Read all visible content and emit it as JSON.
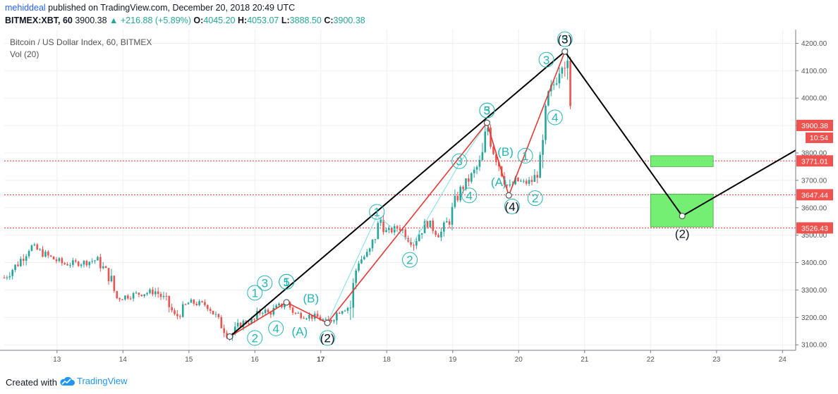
{
  "header": {
    "author": "mehiddeal",
    "published": "published on TradingView.com, December 20, 2018 20:49 UTC",
    "ticker": "BITMEX:XBT, 60",
    "last_price": "3900.38",
    "change": "▲ +216.88 (+5.89%)",
    "open_label": "O:",
    "open": "4045.20",
    "high_label": "H:",
    "high": "4053.07",
    "low_label": "L:",
    "low": "3888.50",
    "close_label": "C:",
    "close": "3900.38"
  },
  "footer": {
    "created_with": "Created with",
    "brand": "TradingView"
  },
  "colors": {
    "up": "#26a69a",
    "down": "#ef5350",
    "wave_black": "#000000",
    "wave_red": "#e53935",
    "wave_cyan": "#7ee0e6",
    "label_teal": "#26b5b5",
    "hline": "#e53935",
    "target_box": "#66ee66",
    "price_tag_red": "#ef5350"
  },
  "chart_data": {
    "type": "candlestick",
    "title": "Bitcoin / US Dollar Index, 60, BITMEX",
    "volume_label": "Vol (20)",
    "ylim": [
      3080,
      4250
    ],
    "y_ticks": [
      3100,
      3200,
      3300,
      3400,
      3500,
      3600,
      3700,
      3800,
      3900,
      4000,
      4100,
      4200
    ],
    "y_tick_labels": [
      "3100.00",
      "3200.00",
      "3300.00",
      "3400.00",
      "3500.00",
      "3600.00",
      "3700.00",
      "3800.00",
      "3900.00",
      "4000.00",
      "4100.00",
      "4200.00"
    ],
    "xlim": [
      12.2,
      24.2
    ],
    "x_ticks": [
      13,
      14,
      15,
      16,
      17,
      18,
      19,
      20,
      21,
      22,
      23,
      24
    ],
    "x_tick_labels": [
      "13",
      "14",
      "15",
      "16",
      "17",
      "18",
      "19",
      "20",
      "21",
      "22",
      "23",
      "24"
    ],
    "x_bold_ticks": [
      17
    ],
    "price_anchors": [
      {
        "x": 12.2,
        "y": 3345
      },
      {
        "x": 12.4,
        "y": 3395
      },
      {
        "x": 12.6,
        "y": 3460
      },
      {
        "x": 12.85,
        "y": 3425
      },
      {
        "x": 13.1,
        "y": 3395
      },
      {
        "x": 13.4,
        "y": 3400
      },
      {
        "x": 13.6,
        "y": 3410
      },
      {
        "x": 13.8,
        "y": 3350
      },
      {
        "x": 13.9,
        "y": 3270
      },
      {
        "x": 14.2,
        "y": 3285
      },
      {
        "x": 14.5,
        "y": 3295
      },
      {
        "x": 14.65,
        "y": 3260
      },
      {
        "x": 14.8,
        "y": 3200
      },
      {
        "x": 15.0,
        "y": 3255
      },
      {
        "x": 15.3,
        "y": 3245
      },
      {
        "x": 15.45,
        "y": 3185
      },
      {
        "x": 15.62,
        "y": 3130
      },
      {
        "x": 15.8,
        "y": 3180
      },
      {
        "x": 16.0,
        "y": 3190
      },
      {
        "x": 16.1,
        "y": 3230
      },
      {
        "x": 16.2,
        "y": 3215
      },
      {
        "x": 16.48,
        "y": 3255
      },
      {
        "x": 16.6,
        "y": 3215
      },
      {
        "x": 16.8,
        "y": 3205
      },
      {
        "x": 16.95,
        "y": 3200
      },
      {
        "x": 17.1,
        "y": 3180
      },
      {
        "x": 17.3,
        "y": 3230
      },
      {
        "x": 17.45,
        "y": 3240
      },
      {
        "x": 17.55,
        "y": 3400
      },
      {
        "x": 17.75,
        "y": 3440
      },
      {
        "x": 17.9,
        "y": 3560
      },
      {
        "x": 18.0,
        "y": 3510
      },
      {
        "x": 18.2,
        "y": 3530
      },
      {
        "x": 18.4,
        "y": 3470
      },
      {
        "x": 18.6,
        "y": 3550
      },
      {
        "x": 18.8,
        "y": 3500
      },
      {
        "x": 18.95,
        "y": 3560
      },
      {
        "x": 19.1,
        "y": 3660
      },
      {
        "x": 19.3,
        "y": 3720
      },
      {
        "x": 19.45,
        "y": 3780
      },
      {
        "x": 19.52,
        "y": 3910
      },
      {
        "x": 19.6,
        "y": 3820
      },
      {
        "x": 19.7,
        "y": 3760
      },
      {
        "x": 19.85,
        "y": 3665
      },
      {
        "x": 19.95,
        "y": 3700
      },
      {
        "x": 20.1,
        "y": 3690
      },
      {
        "x": 20.22,
        "y": 3700
      },
      {
        "x": 20.35,
        "y": 3760
      },
      {
        "x": 20.45,
        "y": 4010
      },
      {
        "x": 20.55,
        "y": 4060
      },
      {
        "x": 20.6,
        "y": 4100
      },
      {
        "x": 20.7,
        "y": 4170
      },
      {
        "x": 20.75,
        "y": 4045
      },
      {
        "x": 20.8,
        "y": 3900
      }
    ],
    "horizontal_levels": [
      3771.01,
      3647.44,
      3526.43
    ],
    "price_tags": [
      {
        "value": 3900.38,
        "label": "3900.38",
        "sub": "10:54"
      },
      {
        "value": 3771.01,
        "label": "3771.01"
      },
      {
        "value": 3647.44,
        "label": "3647.44"
      },
      {
        "value": 3526.43,
        "label": "3526.43"
      }
    ],
    "target_boxes": [
      {
        "x0": 22.0,
        "x1": 22.95,
        "y0": 3750,
        "y1": 3790
      },
      {
        "x0": 22.0,
        "x1": 22.95,
        "y0": 3530,
        "y1": 3650
      }
    ],
    "wave_black": [
      {
        "x": 15.62,
        "y": 3130
      },
      {
        "x": 20.7,
        "y": 4170
      },
      {
        "x": 22.48,
        "y": 3570
      },
      {
        "x": 24.2,
        "y": 3810
      }
    ],
    "wave_red": [
      {
        "x": 15.62,
        "y": 3130
      },
      {
        "x": 16.48,
        "y": 3255
      },
      {
        "x": 17.1,
        "y": 3180
      },
      {
        "x": 19.52,
        "y": 3910
      },
      {
        "x": 19.85,
        "y": 3645
      },
      {
        "x": 20.7,
        "y": 4170
      }
    ],
    "wave_cyan": [
      {
        "x": 17.1,
        "y": 3180
      },
      {
        "x": 17.85,
        "y": 3570
      },
      {
        "x": 18.4,
        "y": 3470
      },
      {
        "x": 19.1,
        "y": 3760
      },
      {
        "x": 19.52,
        "y": 3910
      }
    ],
    "pivots": [
      {
        "x": 15.62,
        "y": 3130
      },
      {
        "x": 16.48,
        "y": 3255
      },
      {
        "x": 17.1,
        "y": 3180
      },
      {
        "x": 19.52,
        "y": 3910
      },
      {
        "x": 19.85,
        "y": 3645
      },
      {
        "x": 20.7,
        "y": 4170
      },
      {
        "x": 22.48,
        "y": 3570
      }
    ],
    "wave_labels": [
      {
        "text": "1",
        "x": 16.0,
        "y": 3290,
        "circle": true
      },
      {
        "text": "2",
        "x": 16.0,
        "y": 3125,
        "circle": true
      },
      {
        "text": "3",
        "x": 16.15,
        "y": 3325,
        "circle": true
      },
      {
        "text": "4",
        "x": 16.32,
        "y": 3160,
        "circle": true
      },
      {
        "text": "5",
        "x": 16.48,
        "y": 3330,
        "circle": true
      },
      {
        "text": "1",
        "x": 16.48,
        "y": 3330,
        "circle": true
      },
      {
        "text": "(A)",
        "x": 16.68,
        "y": 3150,
        "circle": false
      },
      {
        "text": "(B)",
        "x": 16.85,
        "y": 3270,
        "circle": false
      },
      {
        "text": "2",
        "x": 17.1,
        "y": 3125,
        "circle": true
      },
      {
        "text": "(2)",
        "x": 17.1,
        "y": 3125,
        "circle": false
      },
      {
        "text": "1",
        "x": 17.85,
        "y": 3585,
        "circle": true
      },
      {
        "text": "2",
        "x": 18.35,
        "y": 3410,
        "circle": true
      },
      {
        "text": "3",
        "x": 19.1,
        "y": 3770,
        "circle": true
      },
      {
        "text": "4",
        "x": 19.25,
        "y": 3645,
        "circle": true
      },
      {
        "text": "5",
        "x": 19.52,
        "y": 3955,
        "circle": true
      },
      {
        "text": "3",
        "x": 19.52,
        "y": 3955,
        "circle": true
      },
      {
        "text": "(B)",
        "x": 19.8,
        "y": 3805,
        "circle": false
      },
      {
        "text": "1",
        "x": 20.1,
        "y": 3790,
        "circle": true
      },
      {
        "text": "(A)",
        "x": 19.7,
        "y": 3695,
        "circle": false
      },
      {
        "text": "4",
        "x": 19.9,
        "y": 3605,
        "circle": true
      },
      {
        "text": "(4)",
        "x": 19.9,
        "y": 3605,
        "circle": false
      },
      {
        "text": "2",
        "x": 20.25,
        "y": 3635,
        "circle": true
      },
      {
        "text": "3",
        "x": 20.42,
        "y": 4140,
        "circle": true
      },
      {
        "text": "4",
        "x": 20.55,
        "y": 3930,
        "circle": true
      },
      {
        "text": "5",
        "x": 20.7,
        "y": 4215,
        "circle": true
      },
      {
        "text": "(3)",
        "x": 20.7,
        "y": 4215,
        "circle": false
      },
      {
        "text": "(2)",
        "x": 22.48,
        "y": 3505,
        "circle": false
      }
    ]
  }
}
